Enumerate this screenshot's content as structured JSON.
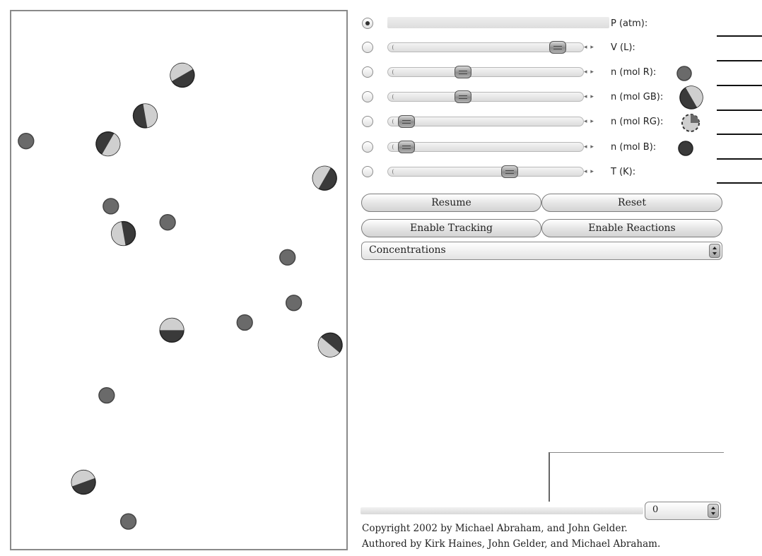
{
  "sliders": [
    {
      "label": "P (atm):",
      "checked": true,
      "is_output": true
    },
    {
      "label": "V (L):",
      "checked": false,
      "value_fraction": 0.92
    },
    {
      "label": "n (mol R):",
      "checked": false,
      "value_fraction": 0.37,
      "icon": "red-molecule-icon"
    },
    {
      "label": "n (mol GB):",
      "checked": false,
      "value_fraction": 0.37,
      "icon": "gb-molecule-icon"
    },
    {
      "label": "n (mol RG):",
      "checked": false,
      "value_fraction": 0.04,
      "icon": "rg-molecule-icon"
    },
    {
      "label": "n (mol B):",
      "checked": false,
      "value_fraction": 0.04,
      "icon": "blue-molecule-icon"
    },
    {
      "label": "T (K):",
      "checked": false,
      "value_fraction": 0.64
    }
  ],
  "buttons": {
    "resume": "Resume",
    "reset": "Reset",
    "enable_tracking": "Enable Tracking",
    "enable_reactions": "Enable Reactions"
  },
  "dropdown": {
    "selected": "Concentrations"
  },
  "small_dropdown": {
    "selected": "0"
  },
  "copyright": {
    "line1": "Copyright 2002 by Michael Abraham, and John Gelder.",
    "line2": "Authored by Kirk Haines, John Gelder, and Michael Abraham."
  },
  "colors": {
    "molecule_dark": "#3a3a3a",
    "molecule_light": "#cfcfcf",
    "molecule_single": "#6a6a6a",
    "border": "#8a8a8a"
  }
}
